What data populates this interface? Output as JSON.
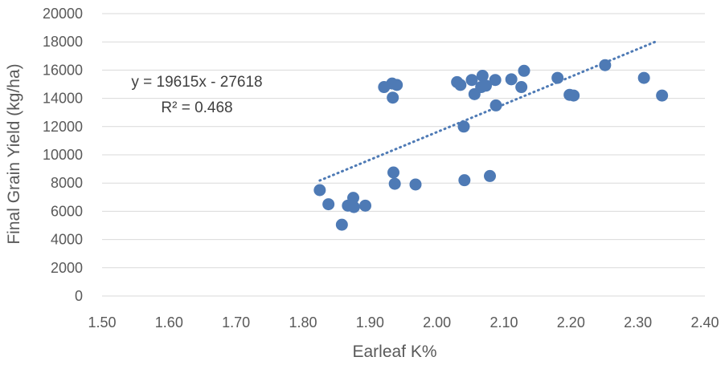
{
  "chart_data": {
    "type": "scatter",
    "xlabel": "Earleaf K%",
    "ylabel": "Final Grain Yield (kg/ha)",
    "xlim": [
      1.5,
      2.4
    ],
    "ylim": [
      0,
      20000
    ],
    "x_ticks": [
      "1.50",
      "1.60",
      "1.70",
      "1.80",
      "1.90",
      "2.00",
      "2.10",
      "2.20",
      "2.30",
      "2.40"
    ],
    "y_ticks": [
      "0",
      "2000",
      "4000",
      "6000",
      "8000",
      "10000",
      "12000",
      "14000",
      "16000",
      "18000",
      "20000"
    ],
    "grid": "horizontal",
    "marker_color": "#4E7AB5",
    "trendline": {
      "type": "linear",
      "style": "dotted",
      "color": "#4E7AB5",
      "slope": 19615,
      "intercept": -27618,
      "x_range": [
        1.825,
        2.33
      ],
      "equation": "y = 19615x - 27618",
      "r2": "R² = 0.468"
    },
    "series": [
      {
        "points": [
          [
            1.825,
            7500
          ],
          [
            1.838,
            6500
          ],
          [
            1.858,
            5050
          ],
          [
            1.867,
            6400
          ],
          [
            1.875,
            6950
          ],
          [
            1.876,
            6300
          ],
          [
            1.893,
            6400
          ],
          [
            1.921,
            14800
          ],
          [
            1.933,
            15050
          ],
          [
            1.934,
            14050
          ],
          [
            1.935,
            8750
          ],
          [
            1.937,
            7950
          ],
          [
            1.94,
            14950
          ],
          [
            1.968,
            7900
          ],
          [
            2.03,
            15150
          ],
          [
            2.035,
            14950
          ],
          [
            2.04,
            12000
          ],
          [
            2.041,
            8200
          ],
          [
            2.052,
            15300
          ],
          [
            2.056,
            14300
          ],
          [
            2.066,
            14800
          ],
          [
            2.068,
            15600
          ],
          [
            2.073,
            14900
          ],
          [
            2.079,
            8500
          ],
          [
            2.087,
            15300
          ],
          [
            2.088,
            13500
          ],
          [
            2.111,
            15350
          ],
          [
            2.126,
            14800
          ],
          [
            2.13,
            15950
          ],
          [
            2.18,
            15450
          ],
          [
            2.198,
            14250
          ],
          [
            2.204,
            14200
          ],
          [
            2.251,
            16350
          ],
          [
            2.309,
            15450
          ],
          [
            2.336,
            14200
          ]
        ]
      }
    ]
  }
}
